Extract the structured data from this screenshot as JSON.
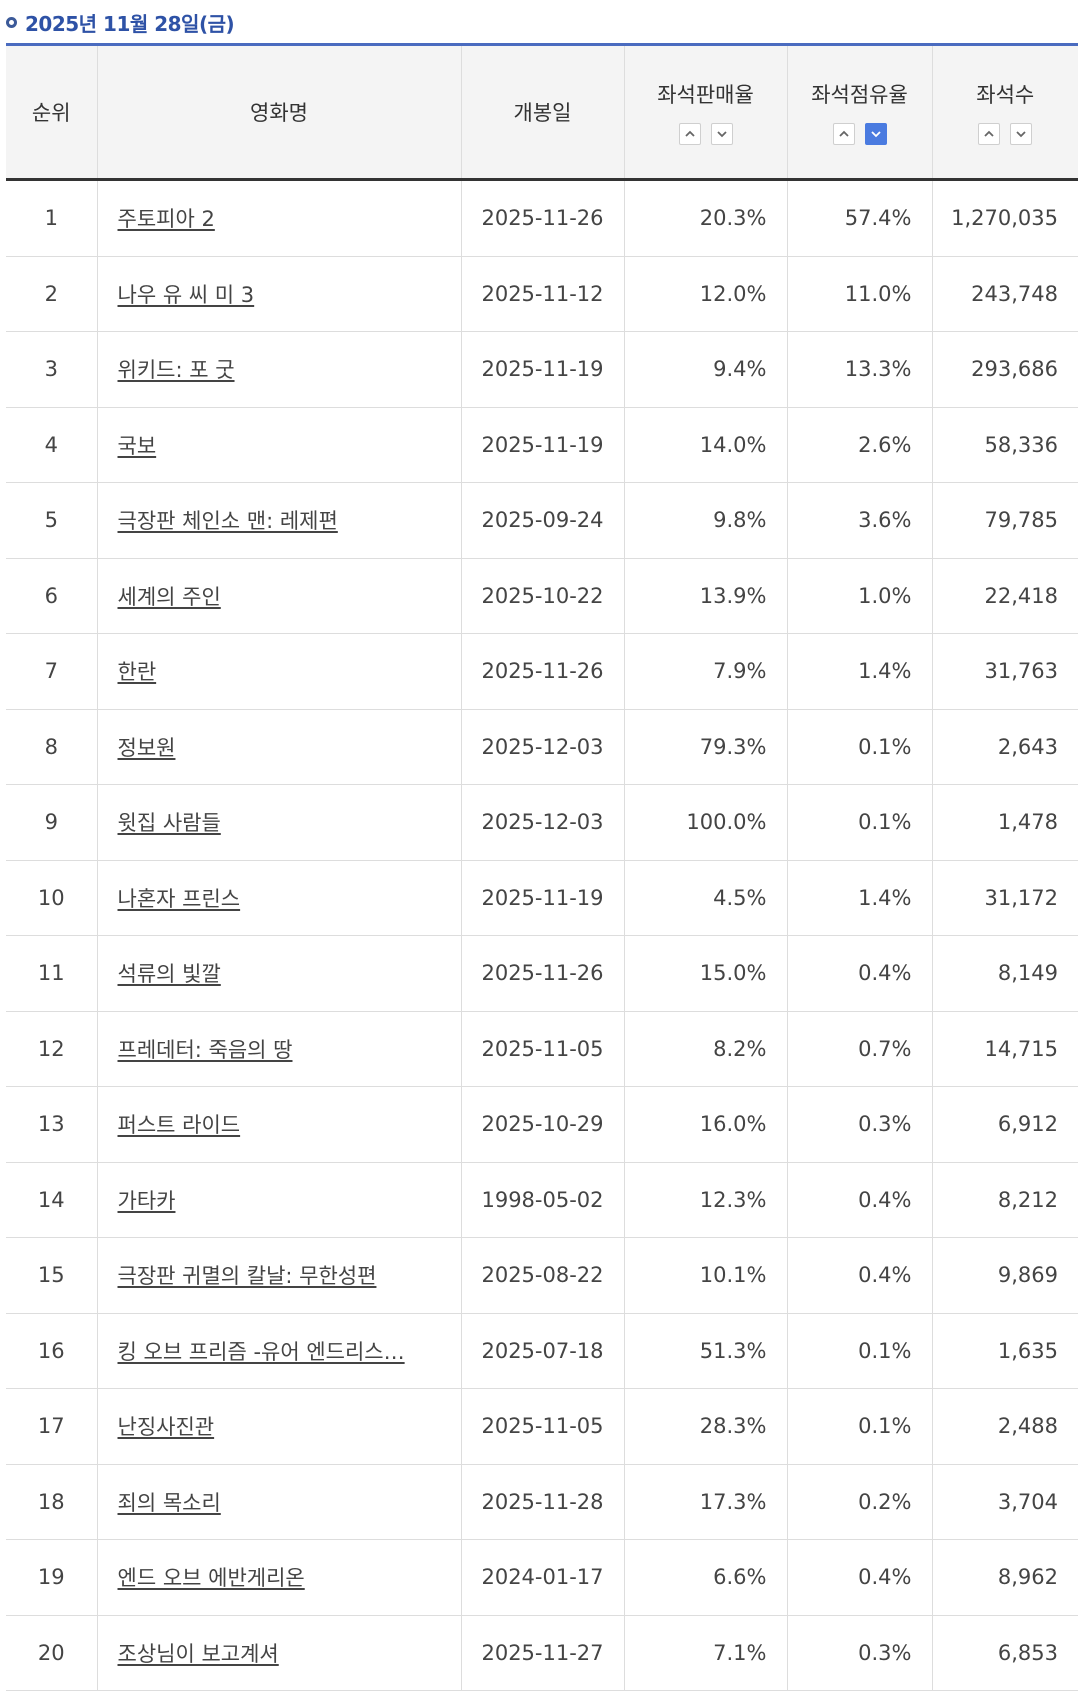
{
  "header": {
    "date": "2025년 11월 28일(금)"
  },
  "columns": {
    "rank": "순위",
    "title": "영화명",
    "open_date": "개봉일",
    "sales_rate": "좌석판매율",
    "share_rate": "좌석점유율",
    "seats": "좌석수"
  },
  "sort": {
    "active_column": "share_rate",
    "active_direction": "desc"
  },
  "colors": {
    "accent": "#2e52a6",
    "active_sort": "#4a7be0"
  },
  "rows": [
    {
      "rank": "1",
      "title": "주토피아 2",
      "open_date": "2025-11-26",
      "sales_rate": "20.3%",
      "share_rate": "57.4%",
      "seats": "1,270,035"
    },
    {
      "rank": "2",
      "title": "나우 유 씨 미 3",
      "open_date": "2025-11-12",
      "sales_rate": "12.0%",
      "share_rate": "11.0%",
      "seats": "243,748"
    },
    {
      "rank": "3",
      "title": "위키드: 포 굿",
      "open_date": "2025-11-19",
      "sales_rate": "9.4%",
      "share_rate": "13.3%",
      "seats": "293,686"
    },
    {
      "rank": "4",
      "title": "국보",
      "open_date": "2025-11-19",
      "sales_rate": "14.0%",
      "share_rate": "2.6%",
      "seats": "58,336"
    },
    {
      "rank": "5",
      "title": "극장판 체인소 맨: 레제편",
      "open_date": "2025-09-24",
      "sales_rate": "9.8%",
      "share_rate": "3.6%",
      "seats": "79,785"
    },
    {
      "rank": "6",
      "title": "세계의 주인",
      "open_date": "2025-10-22",
      "sales_rate": "13.9%",
      "share_rate": "1.0%",
      "seats": "22,418"
    },
    {
      "rank": "7",
      "title": "한란",
      "open_date": "2025-11-26",
      "sales_rate": "7.9%",
      "share_rate": "1.4%",
      "seats": "31,763"
    },
    {
      "rank": "8",
      "title": "정보원",
      "open_date": "2025-12-03",
      "sales_rate": "79.3%",
      "share_rate": "0.1%",
      "seats": "2,643"
    },
    {
      "rank": "9",
      "title": "윗집 사람들",
      "open_date": "2025-12-03",
      "sales_rate": "100.0%",
      "share_rate": "0.1%",
      "seats": "1,478"
    },
    {
      "rank": "10",
      "title": "나혼자 프린스",
      "open_date": "2025-11-19",
      "sales_rate": "4.5%",
      "share_rate": "1.4%",
      "seats": "31,172"
    },
    {
      "rank": "11",
      "title": "석류의 빛깔",
      "open_date": "2025-11-26",
      "sales_rate": "15.0%",
      "share_rate": "0.4%",
      "seats": "8,149"
    },
    {
      "rank": "12",
      "title": "프레데터: 죽음의 땅",
      "open_date": "2025-11-05",
      "sales_rate": "8.2%",
      "share_rate": "0.7%",
      "seats": "14,715"
    },
    {
      "rank": "13",
      "title": "퍼스트 라이드",
      "open_date": "2025-10-29",
      "sales_rate": "16.0%",
      "share_rate": "0.3%",
      "seats": "6,912"
    },
    {
      "rank": "14",
      "title": "가타카",
      "open_date": "1998-05-02",
      "sales_rate": "12.3%",
      "share_rate": "0.4%",
      "seats": "8,212"
    },
    {
      "rank": "15",
      "title": "극장판 귀멸의 칼날: 무한성편",
      "open_date": "2025-08-22",
      "sales_rate": "10.1%",
      "share_rate": "0.4%",
      "seats": "9,869"
    },
    {
      "rank": "16",
      "title": "킹 오브 프리즘 -유어 엔드리스…",
      "open_date": "2025-07-18",
      "sales_rate": "51.3%",
      "share_rate": "0.1%",
      "seats": "1,635"
    },
    {
      "rank": "17",
      "title": "난징사진관",
      "open_date": "2025-11-05",
      "sales_rate": "28.3%",
      "share_rate": "0.1%",
      "seats": "2,488"
    },
    {
      "rank": "18",
      "title": "죄의 목소리",
      "open_date": "2025-11-28",
      "sales_rate": "17.3%",
      "share_rate": "0.2%",
      "seats": "3,704"
    },
    {
      "rank": "19",
      "title": "엔드 오브 에반게리온",
      "open_date": "2024-01-17",
      "sales_rate": "6.6%",
      "share_rate": "0.4%",
      "seats": "8,962"
    },
    {
      "rank": "20",
      "title": "조상님이 보고계셔",
      "open_date": "2025-11-27",
      "sales_rate": "7.1%",
      "share_rate": "0.3%",
      "seats": "6,853"
    }
  ]
}
